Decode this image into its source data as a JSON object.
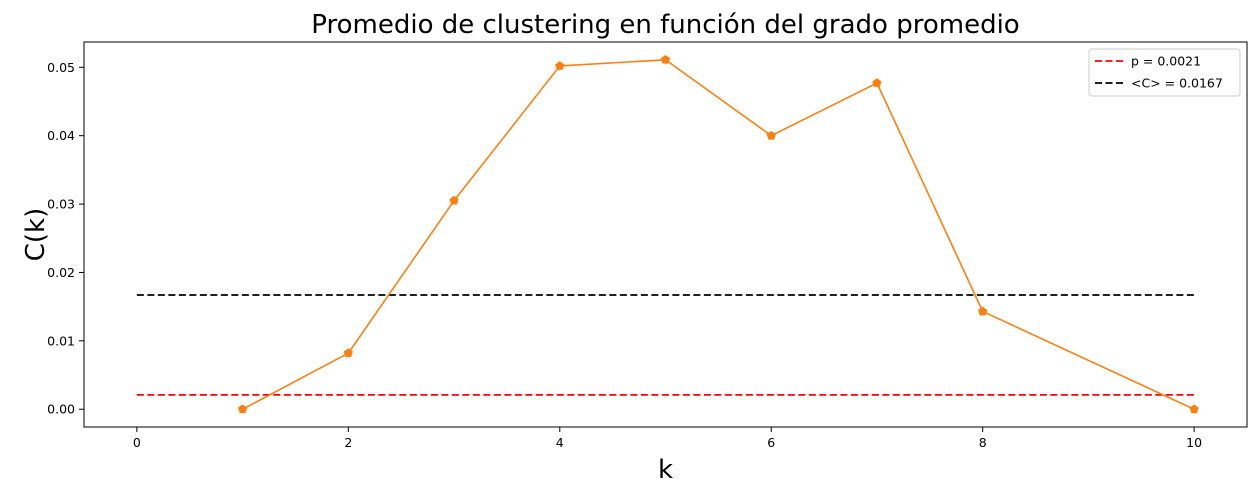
{
  "chart_data": {
    "type": "line",
    "title": "Promedio de clustering en función del grado promedio",
    "xlabel": "k",
    "ylabel": "C(k)",
    "xlim": [
      -0.5,
      10.5
    ],
    "ylim": [
      -0.0026,
      0.0537
    ],
    "x_ticks": [
      0,
      2,
      4,
      6,
      8,
      10
    ],
    "x_tick_labels": [
      "0",
      "2",
      "4",
      "6",
      "8",
      "10"
    ],
    "y_ticks": [
      0.0,
      0.01,
      0.02,
      0.03,
      0.04,
      0.05
    ],
    "y_tick_labels": [
      "0.00",
      "0.01",
      "0.02",
      "0.03",
      "0.04",
      "0.05"
    ],
    "grid": false,
    "legend_position": "top-right",
    "series": [
      {
        "x": [
          1,
          2,
          3,
          4,
          5,
          6,
          7,
          8,
          10
        ],
        "y": [
          0.0,
          0.0082,
          0.0305,
          0.0502,
          0.0511,
          0.04,
          0.0477,
          0.0143,
          0.0
        ],
        "color": "#ff7f0e",
        "marker": "pentagon"
      }
    ],
    "reference_lines": [
      {
        "name": "p = 0.0021",
        "y": 0.0021,
        "x_range": [
          0,
          10
        ],
        "color": "#ff0000",
        "style": "dashed"
      },
      {
        "name": "<C> = 0.0167",
        "y": 0.0167,
        "x_range": [
          0,
          10
        ],
        "color": "#000000",
        "style": "dashed"
      }
    ]
  }
}
